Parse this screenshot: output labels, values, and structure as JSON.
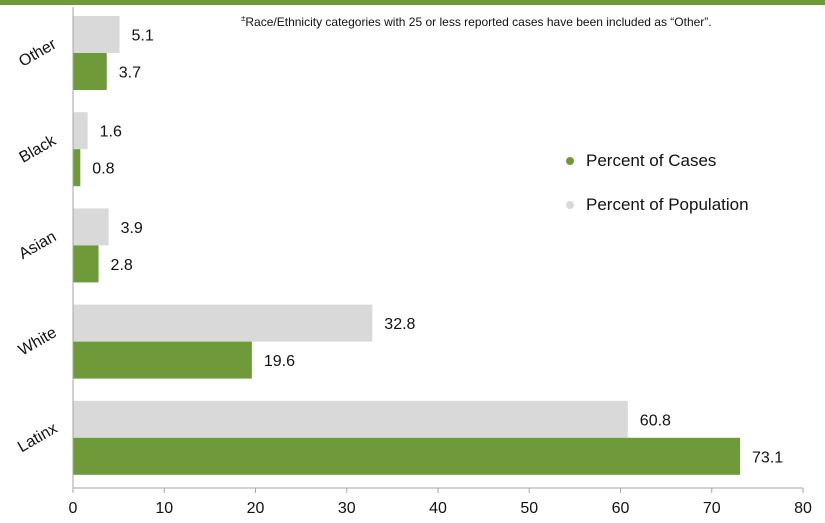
{
  "footnote": {
    "marker": "±",
    "text": "Race/Ethnicity categories with 25 or less reported cases have been included as “Other”."
  },
  "colors": {
    "band": "#6f9a3a",
    "cases": "#6f9a3a",
    "population": "#d9d9d9",
    "axis": "#a6a6a6"
  },
  "chart_data": {
    "type": "bar",
    "orientation": "horizontal",
    "categories": [
      "Other",
      "Black",
      "Asian",
      "White",
      "Latinx"
    ],
    "series": [
      {
        "name": "Percent of Population",
        "values": [
          5.1,
          1.6,
          3.9,
          32.8,
          60.8
        ]
      },
      {
        "name": "Percent of Cases",
        "values": [
          3.7,
          0.8,
          2.8,
          19.6,
          73.1
        ]
      }
    ],
    "xlim": [
      0,
      80
    ],
    "xticks": [
      0,
      10,
      20,
      30,
      40,
      50,
      60,
      70,
      80
    ],
    "grid": false,
    "legend": "right",
    "legend_entries": [
      "Percent of Cases",
      "Percent of Population"
    ],
    "data_labels": true
  }
}
